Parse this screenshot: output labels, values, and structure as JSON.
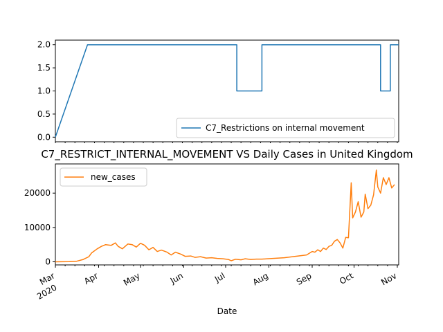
{
  "chart_data": [
    {
      "type": "line",
      "series": [
        {
          "name": "C7_Restrictions on internal movement",
          "color": "#1f77b4",
          "steps": [
            {
              "day": 0,
              "value": 0
            },
            {
              "day": 23,
              "value": 2
            },
            {
              "day": 130,
              "value": 2
            },
            {
              "day": 130,
              "value": 1
            },
            {
              "day": 148,
              "value": 1
            },
            {
              "day": 148,
              "value": 2
            },
            {
              "day": 233,
              "value": 2
            },
            {
              "day": 233,
              "value": 1
            },
            {
              "day": 240,
              "value": 1
            },
            {
              "day": 240,
              "value": 2
            },
            {
              "day": 246,
              "value": 2
            }
          ]
        }
      ],
      "ylim": [
        -0.1,
        2.1
      ],
      "yticks": [
        "0.0",
        "0.5",
        "1.0",
        "1.5",
        "2.0"
      ],
      "ytick_values": [
        0,
        0.5,
        1.0,
        1.5,
        2.0
      ],
      "legend_location": "lower-right"
    },
    {
      "type": "line",
      "title": "C7_RESTRICT_INTERNAL_MOVEMENT VS Daily Cases in United Kingdom",
      "xlabel": "Date",
      "series": [
        {
          "name": "new_cases",
          "color": "#ff7f0e",
          "points": [
            [
              0,
              0
            ],
            [
              10,
              40
            ],
            [
              15,
              150
            ],
            [
              20,
              700
            ],
            [
              24,
              1500
            ],
            [
              26,
              2600
            ],
            [
              30,
              3800
            ],
            [
              33,
              4500
            ],
            [
              36,
              5000
            ],
            [
              40,
              4800
            ],
            [
              43,
              5500
            ],
            [
              45,
              4500
            ],
            [
              48,
              3800
            ],
            [
              52,
              5200
            ],
            [
              55,
              5000
            ],
            [
              58,
              4300
            ],
            [
              61,
              5400
            ],
            [
              64,
              4800
            ],
            [
              67,
              3500
            ],
            [
              70,
              4200
            ],
            [
              73,
              3000
            ],
            [
              76,
              3400
            ],
            [
              80,
              2800
            ],
            [
              83,
              2000
            ],
            [
              86,
              2800
            ],
            [
              90,
              2200
            ],
            [
              93,
              1600
            ],
            [
              97,
              1700
            ],
            [
              100,
              1300
            ],
            [
              104,
              1500
            ],
            [
              108,
              1100
            ],
            [
              112,
              1200
            ],
            [
              116,
              1000
            ],
            [
              120,
              900
            ],
            [
              124,
              700
            ],
            [
              126,
              300
            ],
            [
              129,
              750
            ],
            [
              133,
              600
            ],
            [
              136,
              900
            ],
            [
              140,
              700
            ],
            [
              144,
              800
            ],
            [
              148,
              800
            ],
            [
              152,
              900
            ],
            [
              156,
              1000
            ],
            [
              160,
              1100
            ],
            [
              164,
              1200
            ],
            [
              168,
              1400
            ],
            [
              172,
              1600
            ],
            [
              176,
              1800
            ],
            [
              180,
              2000
            ],
            [
              184,
              3000
            ],
            [
              186,
              2800
            ],
            [
              188,
              3500
            ],
            [
              190,
              3000
            ],
            [
              192,
              4000
            ],
            [
              194,
              3600
            ],
            [
              196,
              4500
            ],
            [
              198,
              4800
            ],
            [
              200,
              6000
            ],
            [
              202,
              6500
            ],
            [
              204,
              5500
            ],
            [
              206,
              4000
            ],
            [
              208,
              7100
            ],
            [
              210,
              7000
            ],
            [
              212,
              23000
            ],
            [
              213,
              12800
            ],
            [
              215,
              14500
            ],
            [
              217,
              17500
            ],
            [
              219,
              13000
            ],
            [
              221,
              14500
            ],
            [
              222,
              19700
            ],
            [
              224,
              15500
            ],
            [
              226,
              16500
            ],
            [
              228,
              19500
            ],
            [
              230,
              26700
            ],
            [
              231,
              21800
            ],
            [
              233,
              20000
            ],
            [
              235,
              24500
            ],
            [
              237,
              22500
            ],
            [
              239,
              24500
            ],
            [
              241,
              21500
            ],
            [
              243,
              22500
            ]
          ]
        }
      ],
      "ylim": [
        -900,
        28500
      ],
      "yticks": [
        "0",
        "10000",
        "20000"
      ],
      "ytick_values": [
        0,
        10000,
        20000
      ],
      "xticks": [
        {
          "day": 0,
          "label": "Mar"
        },
        {
          "day": 31,
          "label": "Apr"
        },
        {
          "day": 61,
          "label": "May"
        },
        {
          "day": 92,
          "label": "Jun"
        },
        {
          "day": 122,
          "label": "Jul"
        },
        {
          "day": 153,
          "label": "Aug"
        },
        {
          "day": 184,
          "label": "Sep"
        },
        {
          "day": 214,
          "label": "Oct"
        },
        {
          "day": 245,
          "label": "Nov"
        }
      ],
      "year_label": "2020",
      "legend_location": "upper-left"
    }
  ]
}
